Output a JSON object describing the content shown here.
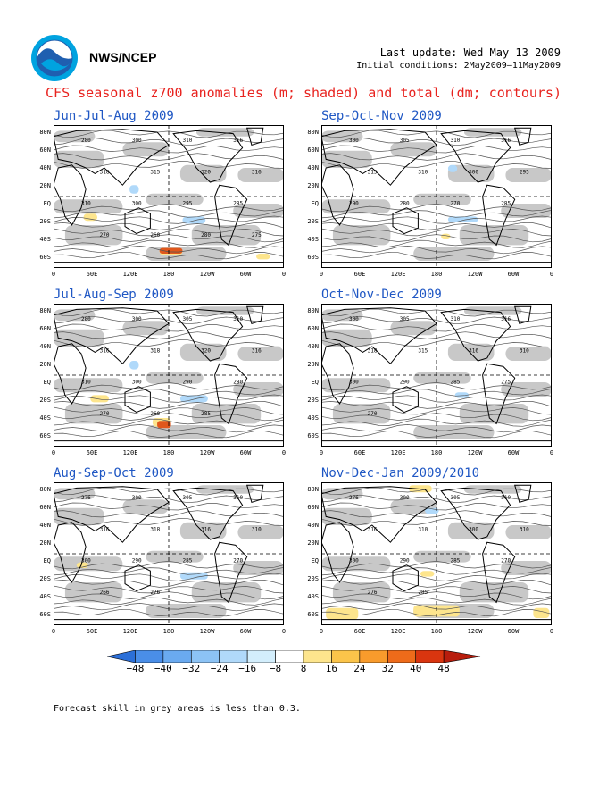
{
  "header": {
    "org": "NWS/NCEP",
    "last_update": "Last update: Wed May 13 2009",
    "initial_conditions": "Initial conditions: 2May2009–11May2009",
    "title": "CFS seasonal z700 anomalies (m; shaded) and total (dm; contours)"
  },
  "panels": [
    {
      "id": "jja",
      "title": "Jun-Jul-Aug 2009",
      "labels": [
        "280",
        "300",
        "310",
        "316",
        "318",
        "315",
        "320",
        "316",
        "310",
        "300",
        "295",
        "285",
        "270",
        "260",
        "280",
        "275"
      ],
      "warm": [
        [
          0.13,
          0.62,
          0.06,
          0.05
        ],
        [
          0.46,
          0.86,
          0.1,
          0.05
        ],
        [
          0.88,
          0.9,
          0.06,
          0.04
        ]
      ],
      "cool": [
        [
          0.56,
          0.64,
          0.1,
          0.05
        ],
        [
          0.33,
          0.42,
          0.04,
          0.06
        ]
      ],
      "strong": [
        [
          0.46,
          0.86,
          0.1,
          0.04
        ]
      ]
    },
    {
      "id": "son",
      "title": "Sep-Oct-Nov 2009",
      "labels": [
        "300",
        "305",
        "310",
        "316",
        "315",
        "310",
        "300",
        "295",
        "290",
        "280",
        "270",
        "285"
      ],
      "warm": [
        [
          0.52,
          0.76,
          0.04,
          0.04
        ]
      ],
      "cool": [
        [
          0.55,
          0.64,
          0.13,
          0.04
        ],
        [
          0.55,
          0.28,
          0.04,
          0.05
        ]
      ],
      "strong": []
    },
    {
      "id": "jas",
      "title": "Jul-Aug-Sep 2009",
      "labels": [
        "280",
        "300",
        "305",
        "310",
        "316",
        "318",
        "320",
        "316",
        "310",
        "300",
        "290",
        "280",
        "270",
        "260",
        "285"
      ],
      "warm": [
        [
          0.16,
          0.64,
          0.08,
          0.05
        ],
        [
          0.43,
          0.8,
          0.08,
          0.06
        ]
      ],
      "cool": [
        [
          0.55,
          0.64,
          0.12,
          0.05
        ],
        [
          0.33,
          0.4,
          0.04,
          0.06
        ]
      ],
      "strong": [
        [
          0.45,
          0.82,
          0.06,
          0.05
        ]
      ]
    },
    {
      "id": "ond",
      "title": "Oct-Nov-Dec 2009",
      "labels": [
        "300",
        "305",
        "310",
        "316",
        "318",
        "315",
        "316",
        "310",
        "300",
        "290",
        "285",
        "275",
        "270"
      ],
      "warm": [],
      "cool": [
        [
          0.58,
          0.62,
          0.06,
          0.04
        ]
      ],
      "strong": []
    },
    {
      "id": "aso",
      "title": "Aug-Sep-Oct 2009",
      "labels": [
        "276",
        "300",
        "305",
        "310",
        "316",
        "318",
        "316",
        "310",
        "300",
        "290",
        "285",
        "270",
        "266",
        "276"
      ],
      "warm": [
        [
          0.1,
          0.56,
          0.05,
          0.04
        ]
      ],
      "cool": [
        [
          0.55,
          0.63,
          0.12,
          0.05
        ]
      ],
      "strong": []
    },
    {
      "id": "ndj",
      "title": "Nov-Dec-Jan 2009/2010",
      "labels": [
        "276",
        "300",
        "305",
        "310",
        "316",
        "310",
        "300",
        "310",
        "300",
        "290",
        "285",
        "270",
        "276",
        "285"
      ],
      "warm": [
        [
          0.38,
          0.02,
          0.1,
          0.05
        ],
        [
          0.02,
          0.88,
          0.14,
          0.08
        ],
        [
          0.4,
          0.86,
          0.2,
          0.08
        ],
        [
          0.92,
          0.88,
          0.07,
          0.07
        ],
        [
          0.43,
          0.62,
          0.06,
          0.04
        ]
      ],
      "cool": [
        [
          0.45,
          0.18,
          0.06,
          0.04
        ]
      ],
      "strong": []
    }
  ],
  "axes": {
    "lat_labels": [
      "80N",
      "60N",
      "40N",
      "20N",
      "EQ",
      "20S",
      "40S",
      "60S"
    ],
    "lon_labels": [
      "0",
      "60E",
      "120E",
      "180",
      "120W",
      "60W",
      "0"
    ]
  },
  "colorbar": {
    "ticks": [
      "−48",
      "−40",
      "−32",
      "−24",
      "−16",
      "−8",
      "8",
      "16",
      "24",
      "32",
      "40",
      "48"
    ],
    "colors": [
      "#2b6fd8",
      "#4a8ee8",
      "#6aaaf0",
      "#8cc3f5",
      "#b0d9fa",
      "#d3eefc",
      "#ffffff",
      "#fde58d",
      "#fbc44a",
      "#f89b2c",
      "#ee6b1a",
      "#d9350f",
      "#b81d0d"
    ]
  },
  "note": "Forecast skill in grey areas is less than 0.3."
}
